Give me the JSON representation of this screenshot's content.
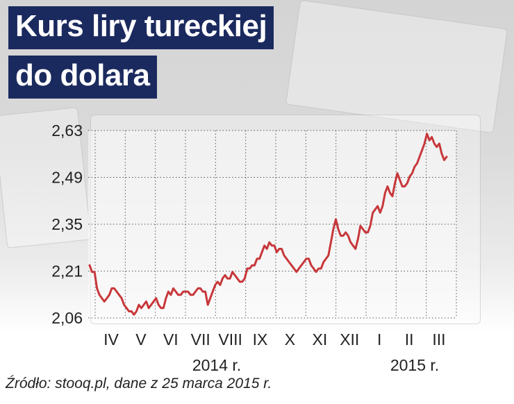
{
  "title_line1": "Kurs liry tureckiej",
  "title_line2": "do dolara",
  "source": "Źródło: stooq.pl, dane z 25 marca 2015 r.",
  "colors": {
    "title_bg": "#1b2a5e",
    "line": "#c8373a",
    "grid": "#555555"
  },
  "chart_data": {
    "type": "line",
    "title": "Kurs liry tureckiej do dolara",
    "y_ticks": [
      "2,06",
      "2,21",
      "2,35",
      "2,49",
      "2,63"
    ],
    "ylim": [
      2.06,
      2.63
    ],
    "x_ticks": [
      "IV",
      "V",
      "VI",
      "VII",
      "VIII",
      "IX",
      "X",
      "XI",
      "XII",
      "I",
      "II",
      "III"
    ],
    "year_labels": [
      "2014 r.",
      "2015 r."
    ],
    "grid": true,
    "series": [
      {
        "values": [
          2.22,
          2.2,
          2.2,
          2.15,
          2.13,
          2.12,
          2.11,
          2.12,
          2.13,
          2.15,
          2.15,
          2.14,
          2.13,
          2.12,
          2.1,
          2.09,
          2.08,
          2.08,
          2.07,
          2.08,
          2.1,
          2.09,
          2.1,
          2.11,
          2.09,
          2.1,
          2.11,
          2.12,
          2.1,
          2.09,
          2.09,
          2.12,
          2.14,
          2.13,
          2.15,
          2.14,
          2.13,
          2.13,
          2.14,
          2.14,
          2.14,
          2.13,
          2.13,
          2.14,
          2.15,
          2.15,
          2.14,
          2.14,
          2.1,
          2.12,
          2.14,
          2.16,
          2.17,
          2.16,
          2.18,
          2.19,
          2.18,
          2.18,
          2.2,
          2.19,
          2.18,
          2.17,
          2.17,
          2.18,
          2.21,
          2.21,
          2.22,
          2.22,
          2.24,
          2.24,
          2.26,
          2.28,
          2.27,
          2.29,
          2.28,
          2.28,
          2.26,
          2.27,
          2.27,
          2.25,
          2.24,
          2.23,
          2.22,
          2.21,
          2.2,
          2.21,
          2.22,
          2.23,
          2.24,
          2.24,
          2.22,
          2.21,
          2.2,
          2.21,
          2.21,
          2.23,
          2.24,
          2.25,
          2.29,
          2.33,
          2.36,
          2.33,
          2.31,
          2.31,
          2.32,
          2.31,
          2.29,
          2.28,
          2.27,
          2.3,
          2.34,
          2.33,
          2.32,
          2.32,
          2.34,
          2.38,
          2.39,
          2.4,
          2.38,
          2.4,
          2.44,
          2.46,
          2.44,
          2.43,
          2.47,
          2.5,
          2.48,
          2.46,
          2.46,
          2.47,
          2.49,
          2.5,
          2.52,
          2.53,
          2.55,
          2.57,
          2.59,
          2.62,
          2.6,
          2.61,
          2.59,
          2.58,
          2.59,
          2.56,
          2.54,
          2.55
        ]
      }
    ]
  }
}
